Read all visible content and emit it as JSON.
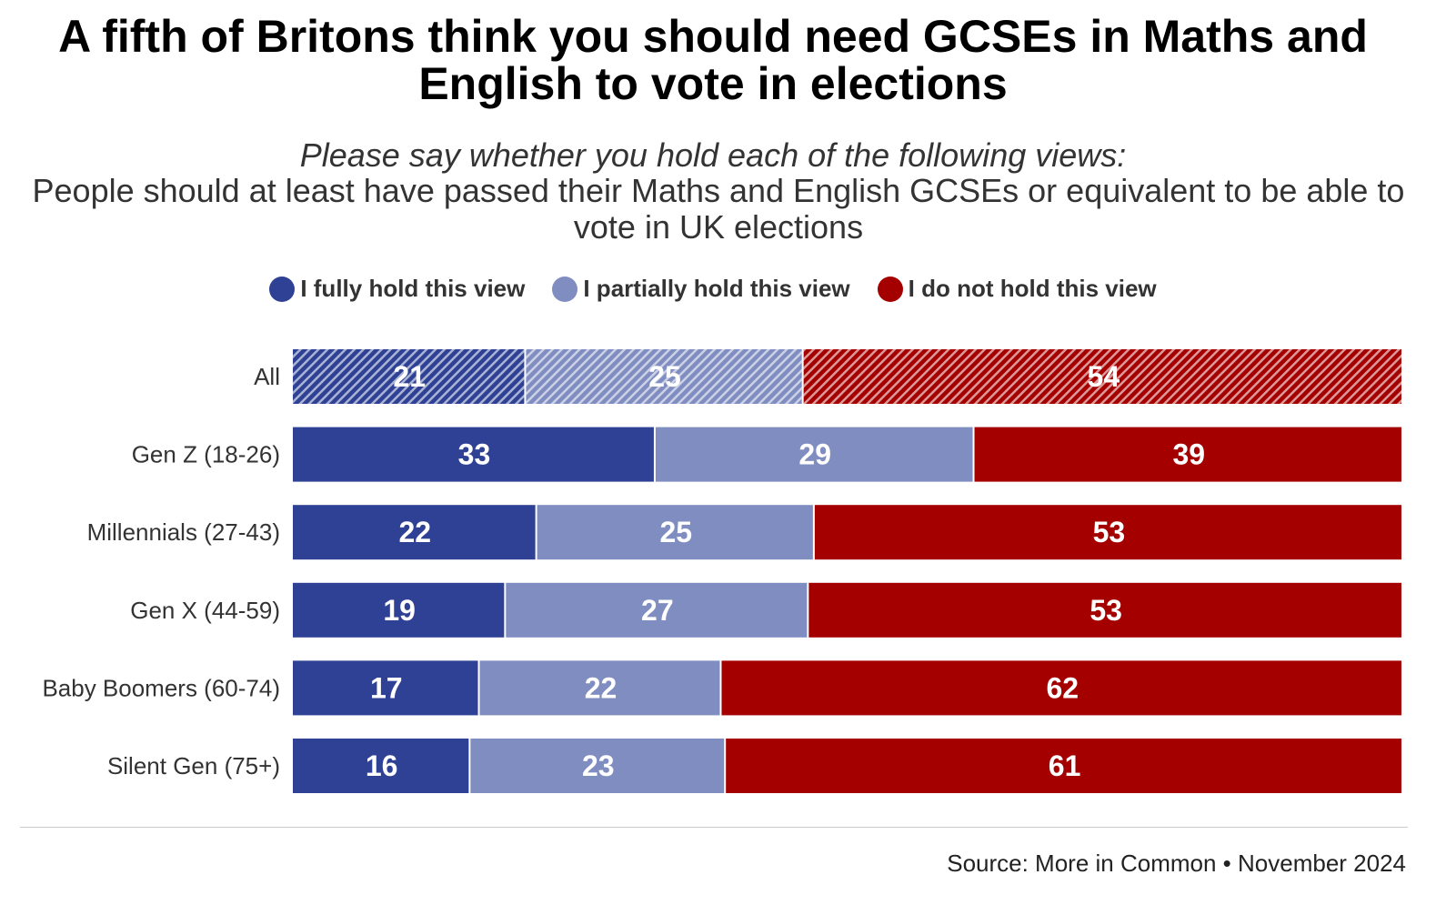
{
  "chart_data": {
    "type": "bar",
    "orientation": "horizontal",
    "stacked": true,
    "title": "A fifth of Britons think you should need GCSEs in Maths and English to vote in elections",
    "subtitle_question": "Please say whether you hold each of the following views:",
    "subtitle_statement": "People should at least have passed their Maths and English GCSEs or equivalent to be able to vote in UK elections",
    "categories": [
      "All",
      "Gen Z (18-26)",
      "Millennials (27-43)",
      "Gen X (44-59)",
      "Baby Boomers (60-74)",
      "Silent Gen (75+)"
    ],
    "series": [
      {
        "name": "I fully hold this view",
        "color": "#2e4194",
        "values": [
          21,
          33,
          22,
          19,
          17,
          16
        ]
      },
      {
        "name": "I partially hold this view",
        "color": "#7f8dc1",
        "values": [
          25,
          29,
          25,
          27,
          22,
          23
        ]
      },
      {
        "name": "I do not hold this view",
        "color": "#a50000",
        "values": [
          54,
          39,
          53,
          53,
          62,
          61
        ]
      }
    ],
    "hatched_categories": [
      "All"
    ],
    "legend_position": "top",
    "grid": false
  },
  "source": "Source: More in Common • November 2024"
}
